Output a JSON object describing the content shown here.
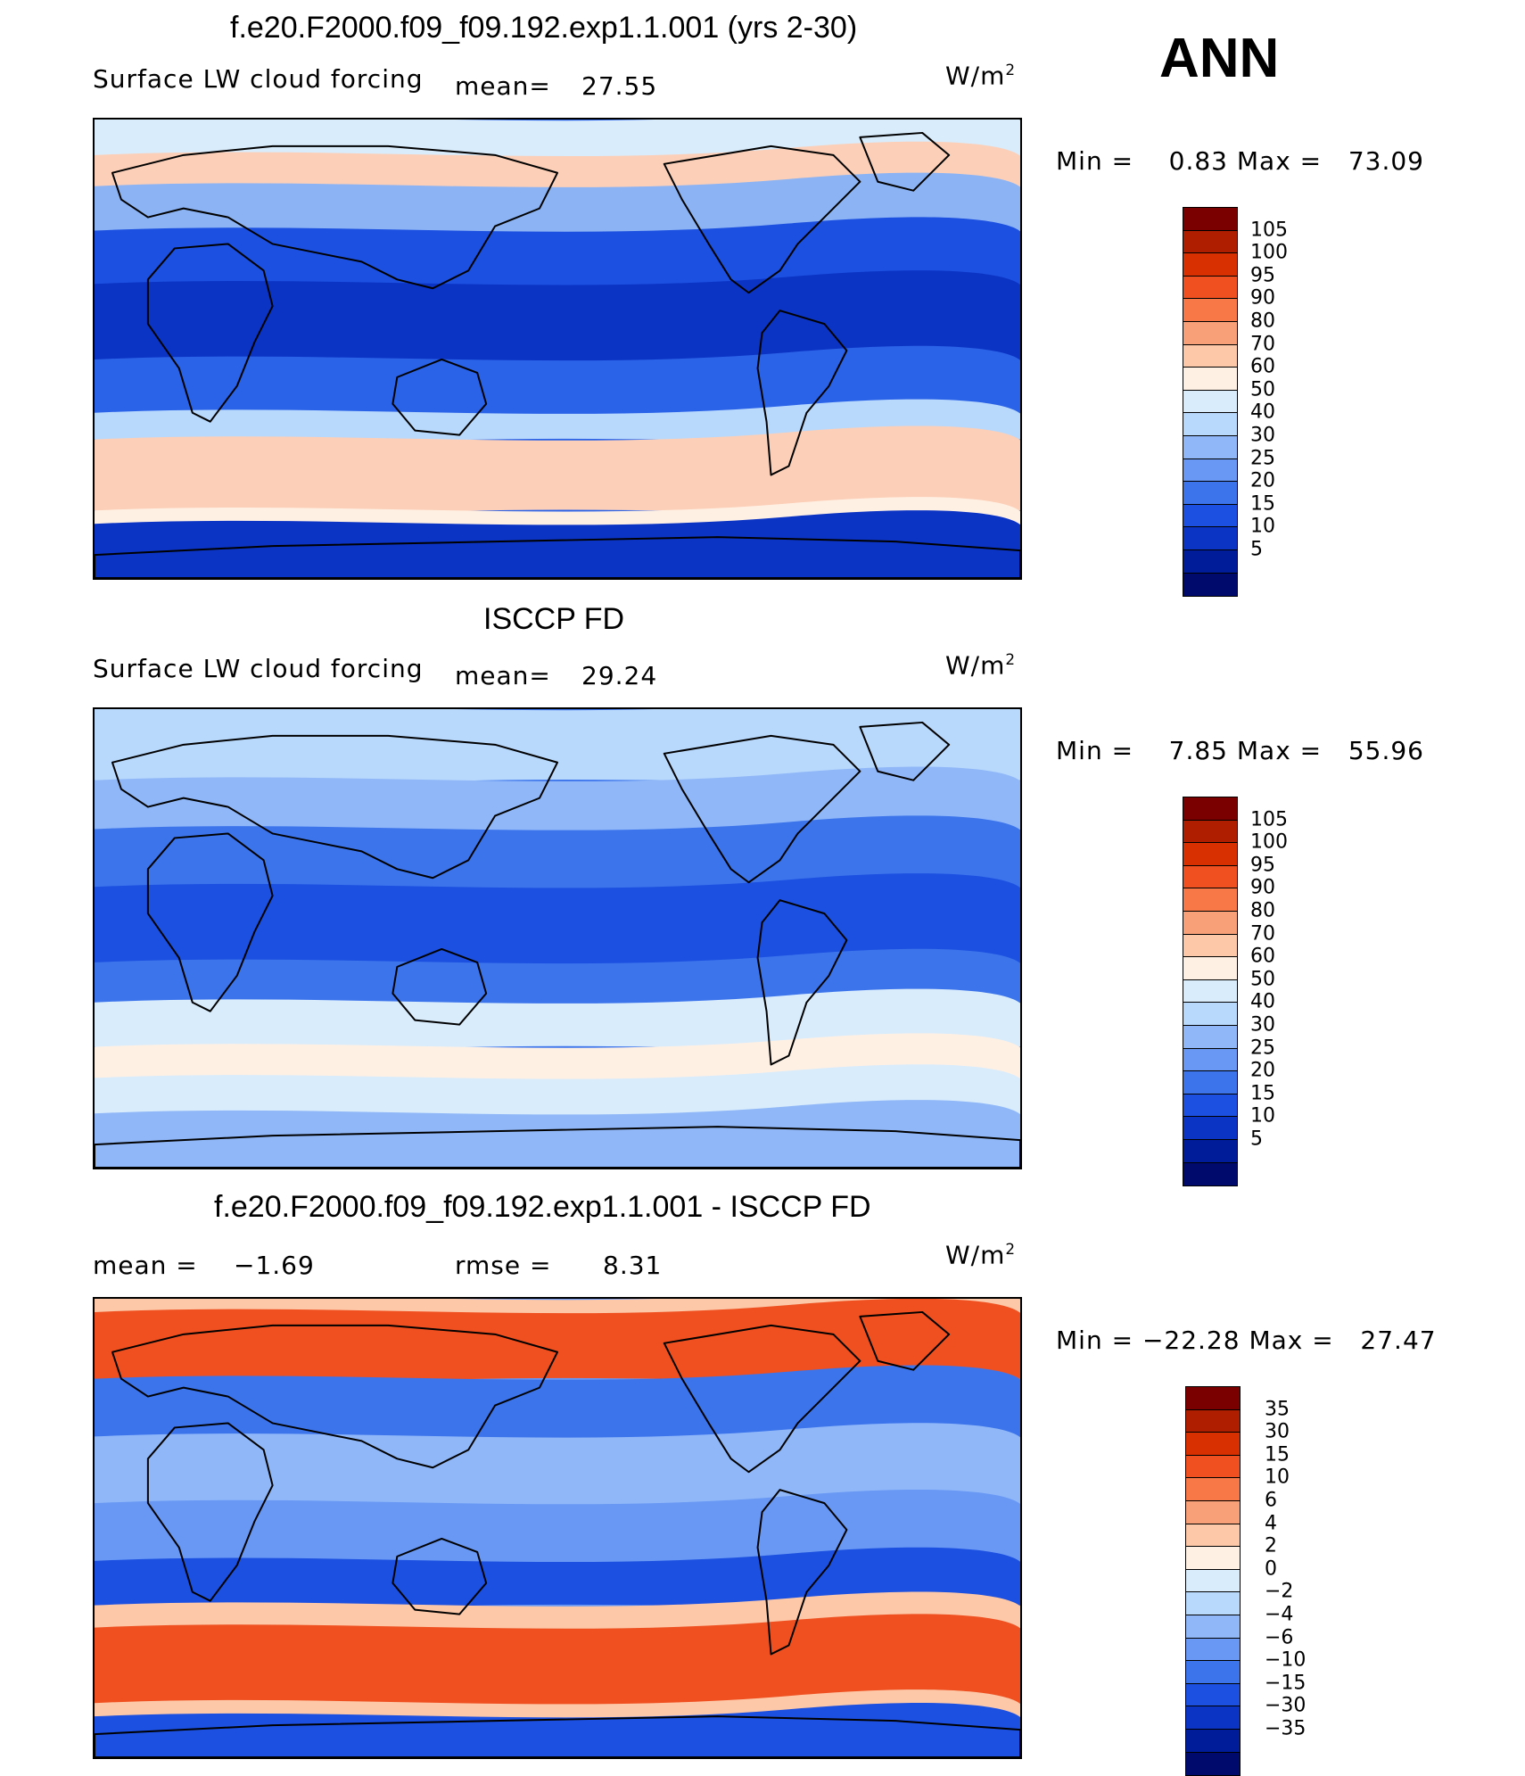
{
  "season": "ANN",
  "panels": [
    {
      "title": "f.e20.F2000.f09_f09.192.exp1.1.001 (yrs 2-30)",
      "left_label": "Surface LW cloud forcing",
      "stat_label": "mean=",
      "stat_value": "27.55",
      "units": "W/m",
      "units_sup": "2",
      "minmax": "Min =    0.83 Max =   73.09",
      "colorbar": {
        "labels": [
          "105",
          "100",
          "95",
          "90",
          "80",
          "70",
          "60",
          "50",
          "40",
          "30",
          "25",
          "20",
          "15",
          "10",
          "5"
        ],
        "colors": [
          "#7a0000",
          "#b01e00",
          "#d83000",
          "#f05020",
          "#f87848",
          "#f8a078",
          "#fcc8a8",
          "#fff0e4",
          "#d8ecfc",
          "#b8d8fc",
          "#90b8f8",
          "#6898f4",
          "#3c74ec",
          "#1c50e0",
          "#0c34c4",
          "#001c98",
          "#000a6c"
        ]
      },
      "map_style": "model"
    },
    {
      "title": "ISCCP FD",
      "left_label": "Surface LW cloud forcing",
      "stat_label": "mean=",
      "stat_value": "29.24",
      "units": "W/m",
      "units_sup": "2",
      "minmax": "Min =    7.85 Max =   55.96",
      "colorbar": {
        "labels": [
          "105",
          "100",
          "95",
          "90",
          "80",
          "70",
          "60",
          "50",
          "40",
          "30",
          "25",
          "20",
          "15",
          "10",
          "5"
        ],
        "colors": [
          "#7a0000",
          "#b01e00",
          "#d83000",
          "#f05020",
          "#f87848",
          "#f8a078",
          "#fcc8a8",
          "#fff0e4",
          "#d8ecfc",
          "#b8d8fc",
          "#90b8f8",
          "#6898f4",
          "#3c74ec",
          "#1c50e0",
          "#0c34c4",
          "#001c98",
          "#000a6c"
        ]
      },
      "map_style": "obs"
    },
    {
      "title": "f.e20.F2000.f09_f09.192.exp1.1.001 - ISCCP FD",
      "left_label": "mean =",
      "left_value": "−1.69",
      "stat_label": "rmse =",
      "stat_value": "8.31",
      "units": "W/m",
      "units_sup": "2",
      "minmax": "Min = −22.28 Max =   27.47",
      "colorbar": {
        "labels": [
          "35",
          "30",
          "15",
          "10",
          "6",
          "4",
          "2",
          "0",
          "−2",
          "−4",
          "−6",
          "−10",
          "−15",
          "−30",
          "−35"
        ],
        "colors": [
          "#7a0000",
          "#b01e00",
          "#d83000",
          "#f05020",
          "#f87848",
          "#f8a078",
          "#fcc8a8",
          "#fff0e4",
          "#d8ecfc",
          "#b8d8fc",
          "#90b8f8",
          "#6898f4",
          "#3c74ec",
          "#1c50e0",
          "#0c34c4",
          "#001c98",
          "#000a6c"
        ]
      },
      "map_style": "diff"
    }
  ]
}
